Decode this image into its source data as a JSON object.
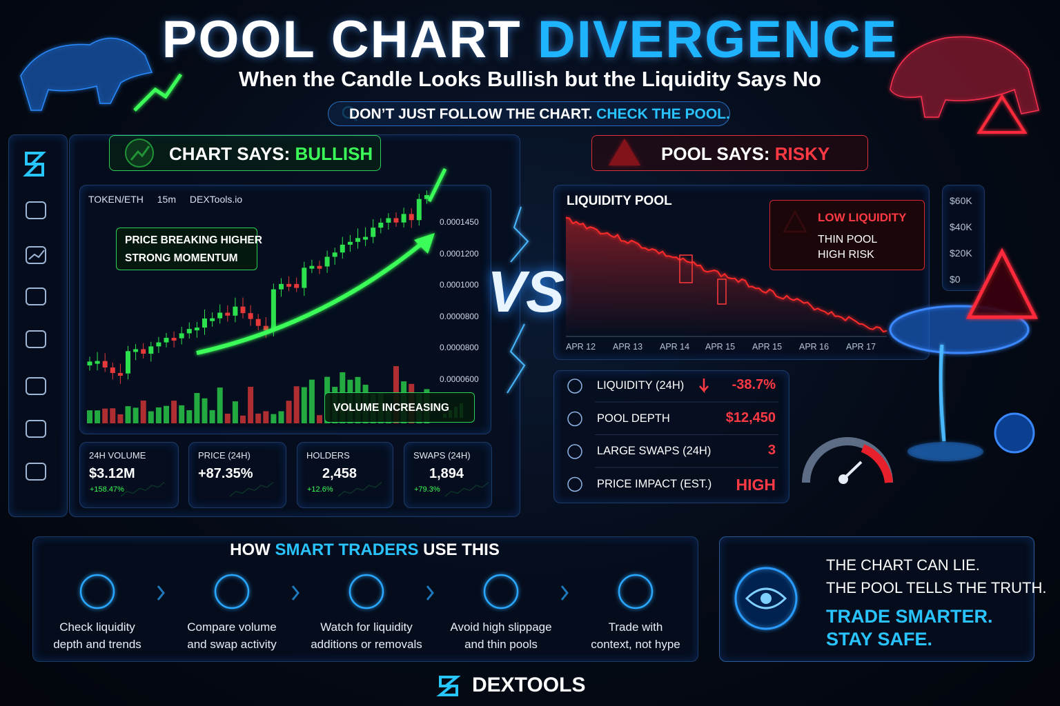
{
  "header": {
    "title_part1": "POOL CHART",
    "title_part2": "DIVERGENCE",
    "subtitle": "When the Candle Looks Bullish but the Liquidity Says No",
    "banner_part1": "DON’T JUST FOLLOW THE CHART.",
    "banner_part2": "CHECK THE POOL."
  },
  "chart_side": {
    "label": "CHART SAYS:",
    "verdict": "BULLISH",
    "pair": "TOKEN/ETH",
    "timeframe": "15m",
    "source": "DEXTools.io",
    "callout": [
      "PRICE BREAKING HIGHER",
      "STRONG MOMENTUM"
    ],
    "price_labels": [
      "0.0001450",
      "0.0001200",
      "0.0001000",
      "0.0000800",
      "0.0000800",
      "0.0000600"
    ],
    "volume_callout": "VOLUME INCREASING"
  },
  "stats": [
    {
      "label": "24H VOLUME",
      "value": "$3.12M",
      "change": "+158.47%"
    },
    {
      "label": "PRICE (24H)",
      "value": "+87.35%"
    },
    {
      "label": "HOLDERS",
      "value": "2,458",
      "change": "+12.6%"
    },
    {
      "label": "SWAPS (24H)",
      "value": "1,894",
      "change": "+79.3%"
    }
  ],
  "vs": "VS",
  "pool_side": {
    "label": "POOL SAYS:",
    "verdict": "RISKY",
    "chart_title": "LIQUIDITY POOL",
    "warning_title": "LOW LIQUIDITY",
    "warning_lines": [
      "THIN POOL",
      "HIGH RISK"
    ],
    "y_labels": [
      "$60K",
      "$40K",
      "$20K",
      "$0"
    ],
    "x_labels": [
      "APR 12",
      "APR 13",
      "APR 14",
      "APR 15",
      "APR 15",
      "APR 16",
      "APR 17"
    ]
  },
  "metrics": [
    {
      "label": "LIQUIDITY (24H)",
      "value": "-38.7%"
    },
    {
      "label": "POOL DEPTH",
      "value": "$12,450"
    },
    {
      "label": "LARGE SWAPS (24H)",
      "value": "3"
    },
    {
      "label": "PRICE IMPACT (EST.)",
      "value": "HIGH"
    }
  ],
  "steps": {
    "title_part1": "HOW",
    "title_part2": "SMART TRADERS",
    "title_part3": "USE THIS",
    "items": [
      [
        "Check liquidity",
        "depth and trends"
      ],
      [
        "Compare volume",
        "and swap activity"
      ],
      [
        "Watch for liquidity",
        "additions or removals"
      ],
      [
        "Avoid high slippage",
        "and thin pools"
      ],
      [
        "Trade with",
        "context, not hype"
      ]
    ]
  },
  "closing": {
    "lines": [
      "THE CHART CAN LIE.",
      "THE POOL TELLS THE TRUTH."
    ],
    "cta": [
      "TRADE SMARTER.",
      "STAY SAFE."
    ]
  },
  "brand": "DEXTOOLS"
}
